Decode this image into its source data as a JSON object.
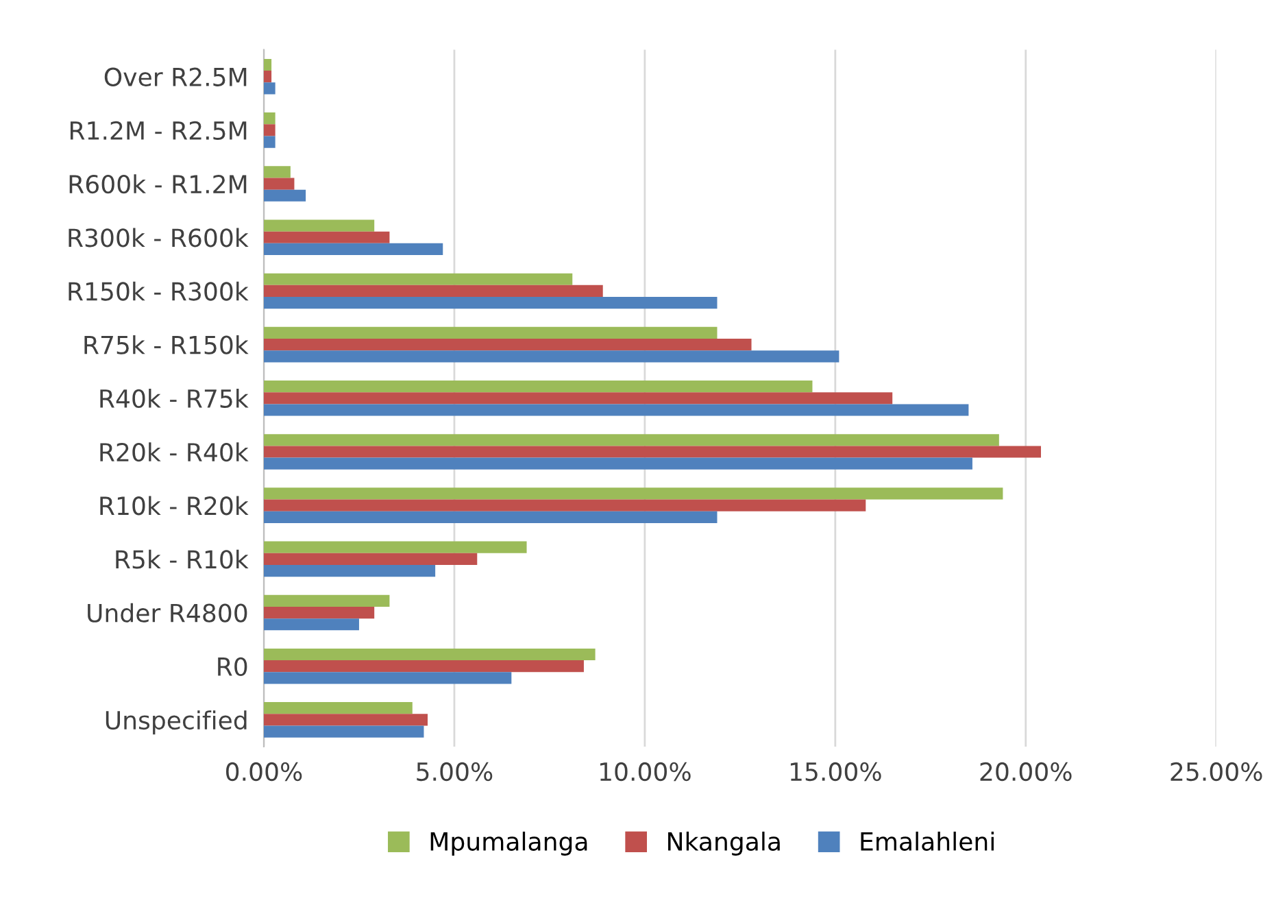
{
  "chart_data": {
    "type": "bar",
    "orientation": "horizontal",
    "categories": [
      "Over R2.5M",
      "R1.2M - R2.5M",
      "R600k - R1.2M",
      "R300k - R600k",
      "R150k - R300k",
      "R75k - R150k",
      "R40k - R75k",
      "R20k - R40k",
      "R10k - R20k",
      "R5k - R10k",
      "Under R4800",
      "R0",
      "Unspecified"
    ],
    "series": [
      {
        "name": "Mpumalanga",
        "color": "#9bbb59",
        "values": [
          0.2,
          0.3,
          0.7,
          2.9,
          8.1,
          11.9,
          14.4,
          19.3,
          19.4,
          6.9,
          3.3,
          8.7,
          3.9
        ]
      },
      {
        "name": "Nkangala",
        "color": "#c0504d",
        "values": [
          0.2,
          0.3,
          0.8,
          3.3,
          8.9,
          12.8,
          16.5,
          20.4,
          15.8,
          5.6,
          2.9,
          8.4,
          4.3
        ]
      },
      {
        "name": "Emalahleni",
        "color": "#4f81bd",
        "values": [
          0.3,
          0.3,
          1.1,
          4.7,
          11.9,
          15.1,
          18.5,
          18.6,
          11.9,
          4.5,
          2.5,
          6.5,
          4.2
        ]
      }
    ],
    "xlim": [
      0,
      25
    ],
    "xticks": [
      {
        "value": 0,
        "label": "0.00%"
      },
      {
        "value": 5,
        "label": "5.00%"
      },
      {
        "value": 10,
        "label": "10.00%"
      },
      {
        "value": 15,
        "label": "15.00%"
      },
      {
        "value": 20,
        "label": "20.00%"
      },
      {
        "value": 25,
        "label": "25.00%"
      }
    ],
    "grid": "x",
    "legend": "bottom"
  }
}
